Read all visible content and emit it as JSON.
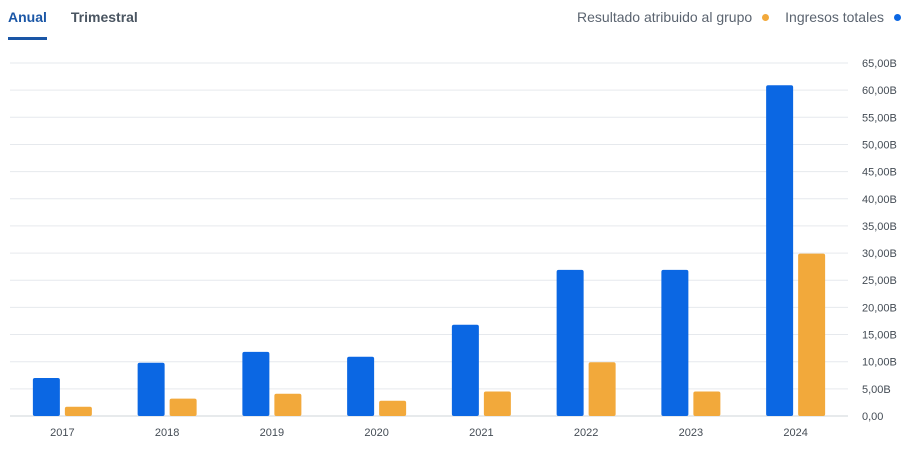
{
  "tabs": [
    {
      "label": "Anual",
      "active": true
    },
    {
      "label": "Trimestral",
      "active": false
    }
  ],
  "legend": [
    {
      "label": "Resultado atribuido al grupo",
      "color": "#f2a93b"
    },
    {
      "label": "Ingresos totales",
      "color": "#0b67e3"
    }
  ],
  "chart_data": {
    "type": "bar",
    "title": "",
    "xlabel": "",
    "ylabel": "",
    "categories": [
      "2017",
      "2018",
      "2019",
      "2020",
      "2021",
      "2022",
      "2023",
      "2024"
    ],
    "series": [
      {
        "name": "Ingresos totales",
        "color": "#0b67e3",
        "values": [
          7.0,
          9.8,
          11.8,
          10.9,
          16.8,
          26.9,
          26.9,
          60.9
        ]
      },
      {
        "name": "Resultado atribuido al grupo",
        "color": "#f2a93b",
        "values": [
          1.7,
          3.2,
          4.1,
          2.8,
          4.5,
          9.9,
          4.5,
          29.9
        ]
      }
    ],
    "ylim": [
      0,
      65
    ],
    "yticks": [
      0,
      5,
      10,
      15,
      20,
      25,
      30,
      35,
      40,
      45,
      50,
      55,
      60,
      65
    ],
    "ytick_labels": [
      "0,00",
      "5,00B",
      "10,00B",
      "15,00B",
      "20,00B",
      "25,00B",
      "30,00B",
      "35,00B",
      "40,00B",
      "45,00B",
      "50,00B",
      "55,00B",
      "60,00B",
      "65,00B"
    ],
    "y_axis_position": "right",
    "grid": true
  }
}
